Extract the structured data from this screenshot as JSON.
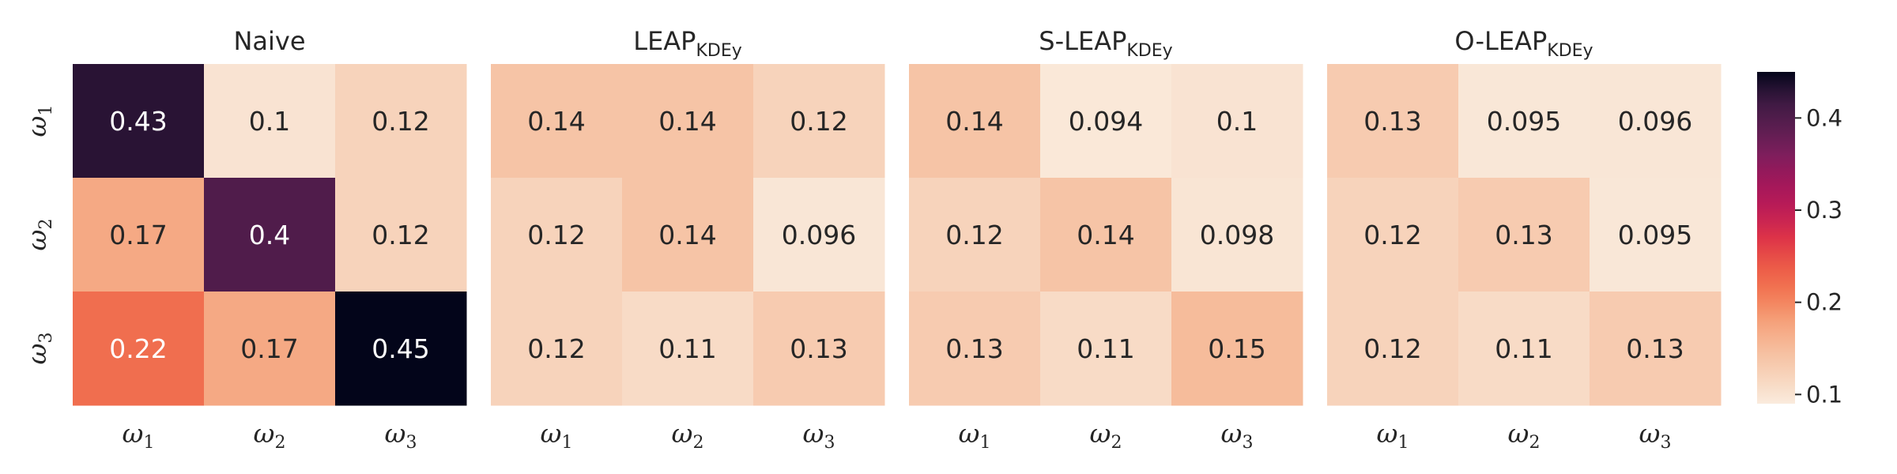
{
  "chart_data": {
    "type": "heatmap",
    "colormap": "rocket_r",
    "vmin": 0.09,
    "vmax": 0.45,
    "row_labels": [
      {
        "base": "ω",
        "sub": "1"
      },
      {
        "base": "ω",
        "sub": "2"
      },
      {
        "base": "ω",
        "sub": "3"
      }
    ],
    "col_labels": [
      {
        "base": "ω",
        "sub": "1"
      },
      {
        "base": "ω",
        "sub": "2"
      },
      {
        "base": "ω",
        "sub": "3"
      }
    ],
    "panels": [
      {
        "title": "Naive",
        "title_sub": "",
        "values": [
          [
            0.43,
            0.1,
            0.12
          ],
          [
            0.17,
            0.4,
            0.12
          ],
          [
            0.22,
            0.17,
            0.45
          ]
        ],
        "labels": [
          [
            "0.43",
            "0.1",
            "0.12"
          ],
          [
            "0.17",
            "0.4",
            "0.12"
          ],
          [
            "0.22",
            "0.17",
            "0.45"
          ]
        ]
      },
      {
        "title": "LEAP",
        "title_sub": "KDEy",
        "values": [
          [
            0.14,
            0.14,
            0.12
          ],
          [
            0.12,
            0.14,
            0.096
          ],
          [
            0.12,
            0.11,
            0.13
          ]
        ],
        "labels": [
          [
            "0.14",
            "0.14",
            "0.12"
          ],
          [
            "0.12",
            "0.14",
            "0.096"
          ],
          [
            "0.12",
            "0.11",
            "0.13"
          ]
        ]
      },
      {
        "title": "S-LEAP",
        "title_sub": "KDEy",
        "values": [
          [
            0.14,
            0.094,
            0.1
          ],
          [
            0.12,
            0.14,
            0.098
          ],
          [
            0.13,
            0.11,
            0.15
          ]
        ],
        "labels": [
          [
            "0.14",
            "0.094",
            "0.1"
          ],
          [
            "0.12",
            "0.14",
            "0.098"
          ],
          [
            "0.13",
            "0.11",
            "0.15"
          ]
        ]
      },
      {
        "title": "O-LEAP",
        "title_sub": "KDEy",
        "values": [
          [
            0.13,
            0.095,
            0.096
          ],
          [
            0.12,
            0.13,
            0.095
          ],
          [
            0.12,
            0.11,
            0.13
          ]
        ],
        "labels": [
          [
            "0.13",
            "0.095",
            "0.096"
          ],
          [
            "0.12",
            "0.13",
            "0.095"
          ],
          [
            "0.12",
            "0.11",
            "0.13"
          ]
        ]
      }
    ],
    "colorbar": {
      "ticks": [
        0.1,
        0.2,
        0.3,
        0.4
      ],
      "tick_labels": [
        "0.1",
        "0.2",
        "0.3",
        "0.4"
      ]
    }
  }
}
